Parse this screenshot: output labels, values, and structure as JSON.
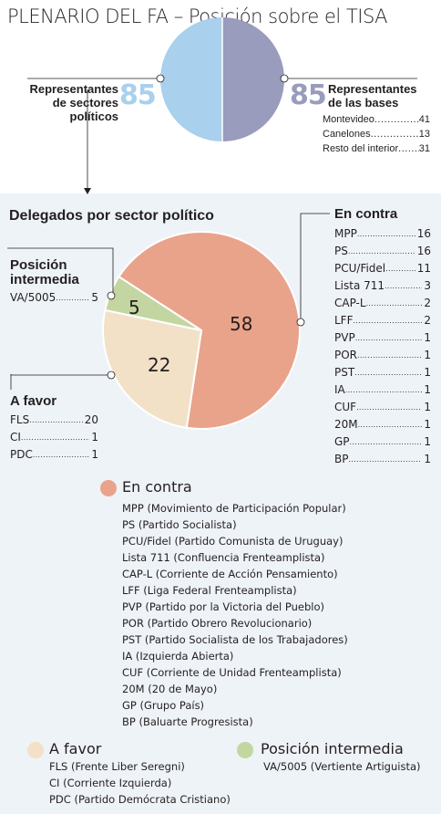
{
  "title": "PLENARIO DEL FA – Posición sobre el TISA",
  "representatives": {
    "sectores": {
      "label": "Representantes\nde sectores\npolíticos",
      "value": "85",
      "color": "#a9d0ec"
    },
    "bases": {
      "label": "Representantes\nde las bases",
      "value": "85",
      "color": "#9a9cbd",
      "breakdown": [
        {
          "label": "Montevideo",
          "value": "41"
        },
        {
          "label": "Canelones",
          "value": "13"
        },
        {
          "label": "Resto del interior",
          "value": "31"
        }
      ]
    }
  },
  "chart_data": {
    "type": "pie",
    "title": "Delegados por sector político",
    "slices": [
      {
        "name": "En contra",
        "value": 58,
        "color": "#e9a38a"
      },
      {
        "name": "A favor",
        "value": 22,
        "color": "#f2e1c7"
      },
      {
        "name": "Posición intermedia",
        "value": 5,
        "color": "#c3d6a2"
      }
    ],
    "groups": {
      "en_contra": {
        "title": "En contra",
        "rows": [
          {
            "label": "MPP",
            "value": "16"
          },
          {
            "label": "PS",
            "value": "16"
          },
          {
            "label": "PCU/Fidel",
            "value": "11"
          },
          {
            "label": "Lista 711",
            "value": "3"
          },
          {
            "label": "CAP-L",
            "value": "2"
          },
          {
            "label": "LFF",
            "value": "2"
          },
          {
            "label": "PVP",
            "value": "1"
          },
          {
            "label": "POR",
            "value": "1"
          },
          {
            "label": "PST",
            "value": "1"
          },
          {
            "label": "IA",
            "value": "1"
          },
          {
            "label": "CUF",
            "value": "1"
          },
          {
            "label": "20M",
            "value": "1"
          },
          {
            "label": "GP",
            "value": "1"
          },
          {
            "label": "BP",
            "value": "1"
          }
        ]
      },
      "intermedia": {
        "title": "Posición\nintermedia",
        "rows": [
          {
            "label": "VA/5005",
            "value": "5"
          }
        ]
      },
      "a_favor": {
        "title": "A favor",
        "rows": [
          {
            "label": "FLS",
            "value": "20"
          },
          {
            "label": "CI",
            "value": "1"
          },
          {
            "label": "PDC",
            "value": "1"
          }
        ]
      }
    }
  },
  "legend": {
    "en_contra": {
      "title": "En contra",
      "color": "#e9a38a",
      "items": [
        "MPP (Movimiento de Participación Popular)",
        "PS (Partido Socialista)",
        "PCU/Fidel (Partido Comunista de Uruguay)",
        "Lista 711 (Confluencia Frenteamplista)",
        "CAP-L (Corriente de Acción Pensamiento)",
        "LFF (Liga Federal Frenteamplista)",
        "PVP (Partido por la Victoria del Pueblo)",
        "POR (Partido Obrero Revolucionario)",
        "PST (Partido Socialista de los Trabajadores)",
        "IA (Izquierda Abierta)",
        "CUF (Corriente de Unidad Frenteamplista)",
        "20M (20 de Mayo)",
        "GP (Grupo País)",
        "BP (Baluarte Progresista)"
      ]
    },
    "a_favor": {
      "title": "A favor",
      "color": "#f2e1c7",
      "items": [
        "FLS (Frente Liber Seregni)",
        "CI (Corriente Izquierda)",
        "PDC (Partido Demócrata Cristiano)"
      ]
    },
    "intermedia": {
      "title": "Posición intermedia",
      "color": "#c3d6a2",
      "items": [
        "VA/5005 (Vertiente Artiguista)"
      ]
    }
  },
  "colors": {
    "line": "#231f20",
    "pie_stroke": "#ffffff"
  }
}
